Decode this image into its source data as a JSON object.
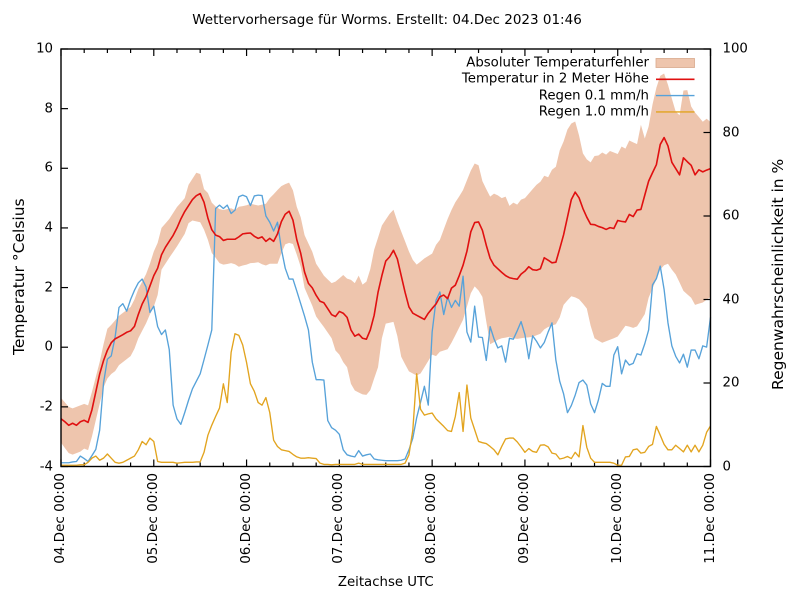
{
  "title": "Wettervorhersage für Worms. Erstellt: 04.Dec 2023 01:46",
  "chart_data": {
    "type": "line",
    "title": "Wettervorhersage für Worms. Erstellt: 04.Dec 2023 01:46",
    "xlabel": "Zeitachse UTC",
    "ylabel_left": "Temperatur °Celsius",
    "ylabel_right": "Regenwahrscheinlichkeit in %",
    "x_tick_labels": [
      "04.Dec 00:00",
      "05.Dec 00:00",
      "06.Dec 00:00",
      "07.Dec 00:00",
      "08.Dec 00:00",
      "09.Dec 00:00",
      "10.Dec 00:00",
      "11.Dec 00:00"
    ],
    "x_major_every_hours": 24,
    "x_minor_every_hours": 6,
    "x_range_hours": [
      0,
      168
    ],
    "ylim_left": [
      -4,
      10
    ],
    "yticks_left": [
      -4,
      -2,
      0,
      2,
      4,
      6,
      8,
      10
    ],
    "ylim_right": [
      0,
      100
    ],
    "yticks_right": [
      0,
      20,
      40,
      60,
      80,
      100
    ],
    "grid": false,
    "legend_position": "top-right",
    "legend": [
      {
        "label": "Absoluter Temperaturfehler",
        "type": "band",
        "color": "#eec5ad",
        "series": [
          "temp_error_upper",
          "temp_error_lower"
        ],
        "axis": "left"
      },
      {
        "label": "Temperatur in 2 Meter Höhe",
        "type": "line",
        "color": "#e01010",
        "series": [
          "temperature_2m"
        ],
        "axis": "left"
      },
      {
        "label": "Regen 0.1 mm/h",
        "type": "line",
        "color": "#57a2d9",
        "series": [
          "rain_01mmh_probability"
        ],
        "axis": "right"
      },
      {
        "label": "Regen 1.0 mm/h",
        "type": "line",
        "color": "#e2a41f",
        "series": [
          "rain_10mmh_probability"
        ],
        "axis": "right"
      }
    ],
    "series": {
      "hours": [
        0,
        1,
        2,
        3,
        4,
        5,
        6,
        7,
        8,
        9,
        10,
        11,
        12,
        13,
        14,
        15,
        16,
        17,
        18,
        19,
        20,
        21,
        22,
        23,
        24,
        25,
        26,
        27,
        28,
        29,
        30,
        31,
        32,
        33,
        34,
        35,
        36,
        37,
        38,
        39,
        40,
        41,
        42,
        43,
        44,
        45,
        46,
        47,
        48,
        49,
        50,
        51,
        52,
        53,
        54,
        55,
        56,
        57,
        58,
        59,
        60,
        61,
        62,
        63,
        64,
        65,
        66,
        67,
        68,
        69,
        70,
        71,
        72,
        73,
        74,
        75,
        76,
        77,
        78,
        79,
        80,
        81,
        82,
        83,
        84,
        85,
        86,
        87,
        88,
        89,
        90,
        91,
        92,
        93,
        94,
        95,
        96,
        97,
        98,
        99,
        100,
        101,
        102,
        103,
        104,
        105,
        106,
        107,
        108,
        109,
        110,
        111,
        112,
        113,
        114,
        115,
        116,
        117,
        118,
        119,
        120,
        121,
        122,
        123,
        124,
        125,
        126,
        127,
        128,
        129,
        130,
        131,
        132,
        133,
        134,
        135,
        136,
        137,
        138,
        139,
        140,
        141,
        142,
        143,
        144,
        145,
        146,
        147,
        148,
        149,
        150,
        151,
        152,
        153,
        154,
        155,
        156,
        157,
        158,
        159,
        160,
        161,
        162,
        163,
        164,
        165,
        166,
        167,
        168
      ],
      "temp_error_upper": [
        -1.7,
        -1.85,
        -2.0,
        -2.05,
        -2.0,
        -1.95,
        -1.9,
        -1.95,
        -1.5,
        -1.0,
        -0.5,
        0.1,
        0.62,
        0.75,
        0.9,
        1.05,
        1.15,
        1.25,
        1.35,
        1.6,
        1.95,
        2.2,
        2.45,
        2.8,
        3.21,
        3.5,
        4.0,
        4.15,
        4.3,
        4.5,
        4.7,
        4.85,
        5.0,
        5.45,
        5.65,
        5.85,
        5.81,
        5.3,
        5.17,
        4.85,
        4.72,
        4.63,
        4.6,
        4.63,
        4.66,
        4.6,
        4.71,
        4.73,
        4.76,
        4.81,
        4.78,
        4.75,
        4.78,
        4.81,
        5.0,
        5.13,
        5.27,
        5.4,
        5.47,
        5.52,
        5.26,
        4.7,
        4.36,
        3.76,
        3.48,
        3.2,
        2.8,
        2.6,
        2.4,
        2.27,
        2.15,
        2.2,
        2.31,
        2.42,
        2.3,
        2.26,
        2.15,
        2.4,
        2.1,
        2.2,
        2.62,
        3.27,
        3.67,
        4.08,
        4.28,
        4.47,
        4.61,
        4.22,
        3.88,
        3.55,
        3.21,
        2.93,
        2.77,
        2.87,
        2.98,
        3.06,
        3.14,
        3.43,
        3.6,
        3.95,
        4.3,
        4.6,
        4.86,
        5.06,
        5.27,
        5.6,
        5.92,
        6.16,
        6.1,
        5.57,
        5.3,
        5.05,
        5.15,
        5.09,
        5.0,
        5.05,
        4.74,
        4.85,
        4.78,
        4.95,
        5.0,
        5.15,
        5.3,
        5.45,
        5.55,
        5.75,
        5.7,
        5.95,
        6.05,
        6.6,
        6.9,
        7.3,
        7.5,
        7.57,
        7.1,
        6.5,
        6.3,
        6.2,
        6.41,
        6.43,
        6.53,
        6.46,
        6.58,
        6.53,
        6.48,
        6.73,
        6.66,
        6.93,
        6.87,
        6.81,
        7.46,
        7.0,
        7.4,
        8.14,
        8.7,
        9.1,
        9.18,
        8.8,
        8.34,
        7.9,
        7.78,
        8.61,
        8.62,
        8.07,
        7.87,
        7.72,
        7.56,
        7.66,
        7.55
      ],
      "temp_error_lower": [
        -3.2,
        -3.38,
        -3.55,
        -3.6,
        -3.55,
        -3.5,
        -3.4,
        -3.45,
        -3.0,
        -2.45,
        -1.9,
        -1.35,
        -1.05,
        -0.9,
        -0.8,
        -0.6,
        -0.5,
        -0.4,
        -0.3,
        -0.05,
        0.3,
        0.55,
        0.8,
        1.1,
        1.36,
        1.75,
        2.6,
        2.8,
        3.0,
        3.19,
        3.38,
        3.59,
        3.8,
        4.16,
        4.25,
        4.22,
        4.19,
        3.94,
        3.6,
        3.16,
        3.0,
        2.82,
        2.77,
        2.79,
        2.82,
        2.78,
        2.7,
        2.74,
        2.77,
        2.82,
        2.83,
        2.85,
        2.78,
        2.74,
        2.8,
        2.8,
        2.8,
        3.15,
        3.45,
        3.5,
        3.46,
        3.1,
        2.7,
        1.99,
        1.69,
        1.39,
        1.03,
        0.85,
        0.68,
        0.49,
        0.3,
        -0.11,
        -0.25,
        -0.5,
        -0.67,
        -1.23,
        -1.45,
        -1.52,
        -1.58,
        -1.6,
        -1.44,
        -1.05,
        -0.67,
        0.3,
        0.79,
        0.82,
        0.85,
        0.37,
        -0.32,
        -0.57,
        -0.81,
        -0.88,
        -0.95,
        -0.88,
        -0.67,
        -0.46,
        -0.25,
        -0.3,
        -0.15,
        -0.11,
        -0.07,
        0.15,
        0.4,
        0.66,
        0.92,
        1.36,
        1.81,
        2.04,
        1.9,
        1.69,
        0.86,
        0.1,
        0.17,
        0.25,
        0.3,
        0.32,
        0.35,
        0.3,
        0.28,
        0.3,
        0.32,
        0.33,
        0.35,
        0.4,
        0.45,
        0.6,
        0.68,
        0.73,
        0.77,
        1.0,
        1.42,
        1.57,
        1.71,
        1.67,
        1.61,
        1.46,
        1.3,
        0.72,
        0.3,
        0.22,
        0.15,
        0.2,
        0.25,
        0.3,
        0.36,
        0.54,
        0.72,
        0.69,
        0.65,
        0.7,
        0.9,
        1.11,
        1.66,
        1.97,
        2.28,
        2.6,
        2.75,
        2.8,
        2.6,
        2.44,
        2.17,
        1.89,
        1.77,
        1.66,
        1.42,
        1.46,
        1.5,
        1.59,
        1.69
      ],
      "temperature_2m": [
        -2.4,
        -2.5,
        -2.62,
        -2.55,
        -2.62,
        -2.5,
        -2.45,
        -2.52,
        -2.1,
        -1.5,
        -0.9,
        -0.45,
        -0.1,
        0.15,
        0.28,
        0.35,
        0.42,
        0.5,
        0.55,
        0.7,
        1.1,
        1.45,
        1.7,
        2.05,
        2.4,
        2.65,
        3.1,
        3.35,
        3.55,
        3.75,
        4.0,
        4.3,
        4.55,
        4.75,
        4.95,
        5.08,
        5.15,
        4.86,
        4.33,
        3.94,
        3.76,
        3.71,
        3.58,
        3.62,
        3.62,
        3.62,
        3.7,
        3.8,
        3.82,
        3.83,
        3.72,
        3.65,
        3.7,
        3.55,
        3.65,
        3.55,
        3.8,
        4.21,
        4.46,
        4.56,
        4.26,
        3.6,
        3.15,
        2.52,
        2.14,
        1.99,
        1.74,
        1.54,
        1.49,
        1.29,
        1.09,
        1.03,
        1.2,
        1.14,
        1.0,
        0.58,
        0.37,
        0.44,
        0.3,
        0.27,
        0.58,
        1.07,
        1.84,
        2.4,
        2.89,
        3.03,
        3.25,
        2.96,
        2.4,
        1.84,
        1.35,
        1.14,
        1.07,
        1.0,
        0.93,
        1.14,
        1.3,
        1.45,
        1.69,
        1.75,
        1.63,
        1.98,
        2.08,
        2.4,
        2.75,
        3.22,
        3.87,
        4.18,
        4.2,
        3.92,
        3.42,
        2.98,
        2.75,
        2.63,
        2.51,
        2.4,
        2.33,
        2.3,
        2.28,
        2.45,
        2.55,
        2.7,
        2.6,
        2.58,
        2.63,
        3.0,
        2.92,
        2.83,
        2.85,
        3.3,
        3.77,
        4.36,
        4.95,
        5.2,
        5.01,
        4.65,
        4.36,
        4.12,
        4.11,
        4.05,
        4.01,
        3.95,
        4.01,
        3.98,
        4.25,
        4.22,
        4.2,
        4.45,
        4.38,
        4.6,
        4.62,
        5.1,
        5.57,
        5.85,
        6.12,
        6.8,
        7.03,
        6.75,
        6.2,
        5.99,
        5.78,
        6.35,
        6.22,
        6.1,
        5.78,
        5.95,
        5.88,
        5.94,
        5.99
      ],
      "rain_01mmh_probability": [
        0.9,
        0.9,
        0.9,
        1.1,
        1.2,
        2.5,
        1.9,
        1.2,
        2.6,
        4.1,
        8.7,
        20.0,
        25.7,
        26.5,
        31.0,
        38.1,
        39.0,
        37.2,
        40.0,
        42.2,
        44.0,
        44.9,
        43.0,
        36.9,
        38.4,
        33.5,
        31.6,
        32.7,
        28.0,
        14.7,
        11.4,
        10.1,
        12.9,
        15.9,
        18.6,
        20.4,
        22.2,
        25.6,
        29.1,
        32.7,
        61.8,
        62.6,
        61.8,
        62.6,
        60.6,
        61.4,
        64.6,
        65.0,
        64.6,
        62.5,
        64.8,
        65.0,
        64.9,
        60.0,
        58.5,
        56.4,
        58.5,
        52.1,
        47.5,
        44.9,
        44.9,
        42.0,
        39.0,
        36.0,
        32.7,
        25.0,
        20.8,
        20.8,
        20.7,
        11.0,
        9.3,
        8.7,
        7.7,
        4.0,
        2.8,
        2.5,
        2.3,
        3.8,
        2.5,
        2.8,
        3.0,
        1.8,
        1.6,
        1.5,
        1.4,
        1.4,
        1.4,
        1.4,
        1.5,
        1.8,
        4.0,
        6.8,
        11.7,
        15.4,
        19.2,
        14.7,
        32.2,
        39.8,
        41.8,
        36.4,
        40.6,
        38.1,
        39.8,
        38.4,
        45.6,
        32.2,
        29.8,
        38.4,
        31.0,
        30.9,
        25.4,
        33.5,
        30.6,
        28.4,
        28.9,
        25.0,
        30.7,
        30.5,
        32.5,
        34.7,
        31.6,
        25.8,
        31.3,
        30.0,
        28.4,
        29.7,
        32.2,
        34.4,
        25.5,
        20.4,
        17.4,
        12.9,
        14.6,
        17.1,
        20.1,
        20.7,
        19.5,
        15.0,
        12.9,
        15.9,
        19.9,
        19.2,
        19.2,
        26.7,
        28.7,
        22.2,
        25.5,
        24.3,
        24.7,
        27.0,
        26.7,
        29.4,
        32.7,
        43.5,
        45.0,
        48.0,
        42.4,
        34.4,
        28.9,
        26.4,
        24.8,
        26.9,
        23.8,
        27.9,
        27.9,
        25.8,
        28.9,
        28.6,
        35.7
      ],
      "rain_10mmh_probability": [
        0.3,
        0.3,
        0.3,
        0.3,
        0.3,
        0.4,
        0.4,
        1.0,
        2.0,
        2.5,
        1.5,
        2.0,
        3.0,
        2.0,
        1.0,
        0.8,
        1.0,
        1.5,
        2.0,
        2.5,
        4.0,
        6.0,
        5.2,
        6.8,
        6.0,
        1.2,
        1.0,
        1.0,
        1.0,
        1.0,
        0.8,
        0.9,
        1.0,
        1.0,
        1.0,
        1.1,
        1.1,
        3.4,
        7.5,
        9.9,
        12.0,
        14.0,
        19.8,
        15.3,
        27.3,
        31.8,
        31.4,
        29.1,
        24.9,
        19.8,
        18.0,
        15.3,
        14.7,
        16.5,
        12.9,
        6.3,
        4.8,
        4.0,
        3.8,
        3.6,
        2.9,
        2.3,
        2.0,
        2.0,
        2.1,
        2.0,
        1.9,
        0.8,
        0.5,
        0.5,
        0.4,
        0.5,
        0.5,
        0.5,
        0.5,
        0.5,
        0.5,
        0.8,
        0.5,
        0.5,
        0.5,
        0.5,
        0.5,
        0.5,
        0.5,
        0.5,
        0.5,
        0.5,
        0.5,
        0.8,
        2.8,
        8.7,
        22.2,
        13.7,
        12.3,
        12.6,
        12.8,
        11.4,
        10.5,
        9.6,
        8.6,
        8.4,
        12.0,
        17.7,
        8.4,
        19.5,
        11.6,
        8.8,
        6.0,
        5.7,
        5.5,
        4.8,
        4.0,
        2.8,
        4.8,
        6.6,
        6.8,
        6.8,
        5.9,
        4.7,
        3.4,
        4.3,
        3.6,
        3.4,
        5.1,
        5.2,
        4.7,
        3.2,
        3.0,
        1.8,
        2.0,
        2.4,
        1.9,
        3.4,
        2.3,
        9.8,
        4.6,
        2.0,
        1.0,
        1.0,
        1.0,
        1.0,
        1.0,
        0.8,
        0.3,
        0.3,
        2.3,
        2.4,
        4.0,
        4.2,
        3.2,
        3.4,
        4.8,
        5.3,
        9.6,
        7.5,
        5.3,
        4.0,
        4.0,
        5.1,
        4.3,
        3.5,
        5.1,
        3.5,
        5.1,
        3.5,
        5.1,
        8.2,
        9.7
      ]
    }
  },
  "colors": {
    "background": "#ffffff",
    "axis": "#000000",
    "text": "#000000",
    "band_fill": "#eec5ad",
    "temperature_line": "#e01010",
    "rain01_line": "#57a2d9",
    "rain10_line": "#e2a41f"
  }
}
